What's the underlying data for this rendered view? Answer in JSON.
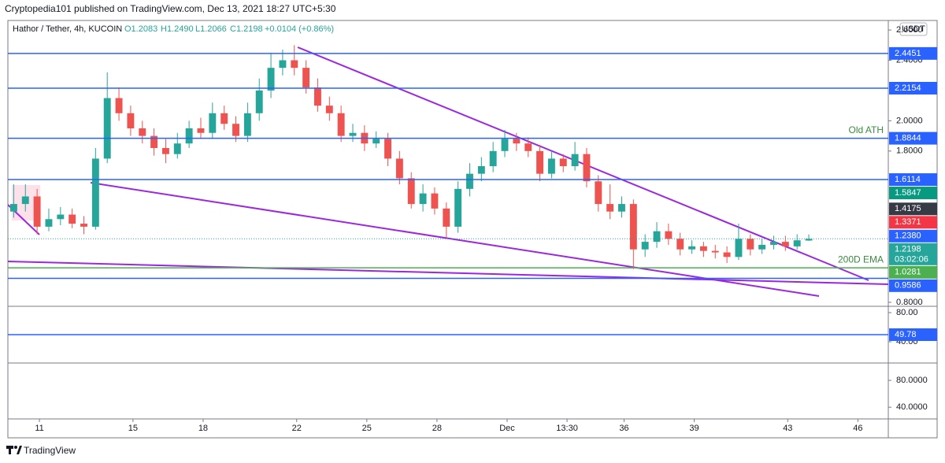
{
  "header": {
    "byline": "Cryptopedia101 published on TradingView.com, Dec 13, 2021 18:27 UTC+5:30",
    "footer": "TradingView"
  },
  "chart_data": {
    "type": "candlestick",
    "legend": {
      "symbol": "Hathor / Tether, 4h, KUCOIN",
      "open": "O1.2083",
      "high": "H1.2490",
      "low": "L1.2066",
      "close": "C1.2198",
      "change": "+0.0104 (+0.86%)"
    },
    "currency": "USDT",
    "up_color": "#26a69a",
    "down_color": "#ef5350",
    "x": [
      9.9,
      10.4,
      10.9,
      11.4,
      11.9,
      12.4,
      12.9,
      13.4,
      13.9,
      14.4,
      14.9,
      15.4,
      15.9,
      16.4,
      16.9,
      17.4,
      17.9,
      18.4,
      18.9,
      19.4,
      19.9,
      20.4,
      20.9,
      21.4,
      21.9,
      22.4,
      22.9,
      23.4,
      23.9,
      24.4,
      24.9,
      25.4,
      25.9,
      26.4,
      26.9,
      27.4,
      27.9,
      28.4,
      28.9,
      29.4,
      29.9,
      30.4,
      30.9,
      31.4,
      31.9,
      32.4,
      32.9,
      33.4,
      33.9,
      34.4,
      34.9,
      35.4,
      35.9,
      36.4,
      36.9,
      37.4,
      37.9,
      38.4,
      38.9,
      39.4,
      39.9,
      40.4,
      40.9,
      41.4,
      41.9,
      42.4,
      42.9,
      43.4,
      43.9
    ],
    "open": [
      1.4,
      1.45,
      1.5,
      1.3,
      1.35,
      1.38,
      1.32,
      1.3,
      1.75,
      2.15,
      2.05,
      1.95,
      1.9,
      1.82,
      1.78,
      1.85,
      1.95,
      1.92,
      2.05,
      1.98,
      1.9,
      2.05,
      2.2,
      2.35,
      2.4,
      2.35,
      2.22,
      2.1,
      2.05,
      1.9,
      1.92,
      1.85,
      1.88,
      1.75,
      1.62,
      1.45,
      1.52,
      1.42,
      1.3,
      1.55,
      1.65,
      1.7,
      1.8,
      1.88,
      1.85,
      1.8,
      1.65,
      1.75,
      1.7,
      1.78,
      1.6,
      1.45,
      1.4,
      1.45,
      1.15,
      1.2,
      1.27,
      1.22,
      1.15,
      1.17,
      1.14,
      1.13,
      1.1,
      1.22,
      1.15,
      1.18,
      1.2,
      1.17,
      1.2083
    ],
    "high": [
      1.58,
      1.58,
      1.55,
      1.42,
      1.43,
      1.42,
      1.37,
      1.82,
      2.32,
      2.22,
      2.1,
      2.0,
      1.95,
      1.88,
      1.92,
      2.0,
      2.02,
      2.12,
      2.1,
      2.03,
      2.12,
      2.28,
      2.45,
      2.47,
      2.5,
      2.4,
      2.28,
      2.16,
      2.1,
      1.98,
      1.97,
      1.93,
      1.92,
      1.8,
      1.66,
      1.58,
      1.56,
      1.46,
      1.6,
      1.72,
      1.76,
      1.86,
      1.94,
      1.92,
      1.89,
      1.84,
      1.8,
      1.78,
      1.86,
      1.82,
      1.64,
      1.58,
      1.5,
      1.48,
      1.25,
      1.33,
      1.32,
      1.26,
      1.21,
      1.2,
      1.18,
      1.17,
      1.32,
      1.25,
      1.22,
      1.24,
      1.24,
      1.25,
      1.249
    ],
    "low": [
      1.36,
      1.4,
      1.25,
      1.27,
      1.31,
      1.29,
      1.25,
      1.28,
      1.72,
      2.0,
      1.9,
      1.85,
      1.77,
      1.72,
      1.75,
      1.82,
      1.88,
      1.88,
      1.94,
      1.86,
      1.86,
      2.0,
      2.15,
      2.3,
      2.3,
      2.18,
      2.06,
      2.0,
      1.86,
      1.86,
      1.8,
      1.82,
      1.7,
      1.58,
      1.42,
      1.4,
      1.38,
      1.23,
      1.26,
      1.5,
      1.6,
      1.66,
      1.76,
      1.8,
      1.76,
      1.6,
      1.62,
      1.66,
      1.67,
      1.56,
      1.4,
      1.35,
      1.36,
      1.02,
      1.1,
      1.16,
      1.18,
      1.11,
      1.12,
      1.1,
      1.09,
      1.06,
      1.08,
      1.11,
      1.12,
      1.15,
      1.14,
      1.15,
      1.2066
    ],
    "close": [
      1.45,
      1.5,
      1.3,
      1.35,
      1.38,
      1.32,
      1.3,
      1.75,
      2.15,
      2.05,
      1.95,
      1.9,
      1.82,
      1.78,
      1.85,
      1.95,
      1.92,
      2.05,
      1.98,
      1.9,
      2.05,
      2.2,
      2.35,
      2.4,
      2.35,
      2.22,
      2.1,
      2.05,
      1.9,
      1.92,
      1.85,
      1.88,
      1.75,
      1.62,
      1.45,
      1.52,
      1.42,
      1.3,
      1.55,
      1.65,
      1.7,
      1.8,
      1.88,
      1.85,
      1.8,
      1.65,
      1.75,
      1.7,
      1.78,
      1.6,
      1.45,
      1.4,
      1.45,
      1.15,
      1.2,
      1.27,
      1.22,
      1.15,
      1.17,
      1.14,
      1.13,
      1.1,
      1.22,
      1.15,
      1.18,
      1.2,
      1.17,
      1.21,
      1.2198
    ],
    "xlim": [
      9.65,
      47.3
    ],
    "xticks": [
      11,
      15,
      18,
      22,
      25,
      28,
      {
        "value": 31,
        "label": "Dec"
      },
      {
        "value": 33.5625,
        "label": "13:30"
      },
      36,
      39,
      43,
      46
    ],
    "ylim": [
      0.779,
      2.663
    ],
    "yticks": [
      {
        "value": 2.6,
        "label": "2.6000"
      },
      {
        "value": 2.4,
        "label": "2.4000"
      },
      {
        "value": 2.0,
        "label": "2.0000"
      },
      {
        "value": 1.8,
        "label": "1.8000"
      },
      {
        "value": 0.8,
        "label": "0.8000"
      }
    ],
    "levels": [
      {
        "value": 2.4451,
        "color": "#2962ff",
        "line": "solid"
      },
      {
        "value": 2.2154,
        "color": "#2962ff",
        "line": "solid"
      },
      {
        "value": 1.8844,
        "color": "#2962ff",
        "line": "solid"
      },
      {
        "value": 1.6114,
        "color": "#2962ff",
        "line": "solid"
      },
      {
        "value": 1.5847,
        "color": "#089981",
        "line": "none"
      },
      {
        "value": 1.4175,
        "color": "#363a45",
        "line": "none"
      },
      {
        "value": 1.3371,
        "color": "#f23645",
        "line": "none"
      },
      {
        "value": 1.238,
        "label": "1.2380",
        "color": "#2962ff",
        "line": "none"
      },
      {
        "value": 1.2198,
        "color": "#26a69a",
        "line": "dotted",
        "countdown": "03:02:06"
      },
      {
        "value": 1.0281,
        "color": "#4caf50",
        "line": "solid"
      },
      {
        "value": 0.9586,
        "color": "#2962ff",
        "line": "solid"
      }
    ],
    "annotations": [
      {
        "text": "Old ATH",
        "value": 1.8844
      },
      {
        "text": "200D EMA",
        "value": 1.0281
      }
    ],
    "panes": [
      {
        "ylim": [
          12,
          87.6
        ],
        "yticks": [
          {
            "value": 80,
            "label": "80.00"
          },
          {
            "value": 40,
            "label": "40.00"
          }
        ],
        "levels": [
          {
            "value": 49.78,
            "color": "#2962ff",
            "line": "solid"
          }
        ]
      },
      {
        "ylim": [
          22.6,
          104.7
        ],
        "yticks": [
          {
            "value": 80,
            "label": "80.0000"
          },
          {
            "value": 40,
            "label": "40.0000"
          }
        ],
        "levels": []
      }
    ]
  }
}
